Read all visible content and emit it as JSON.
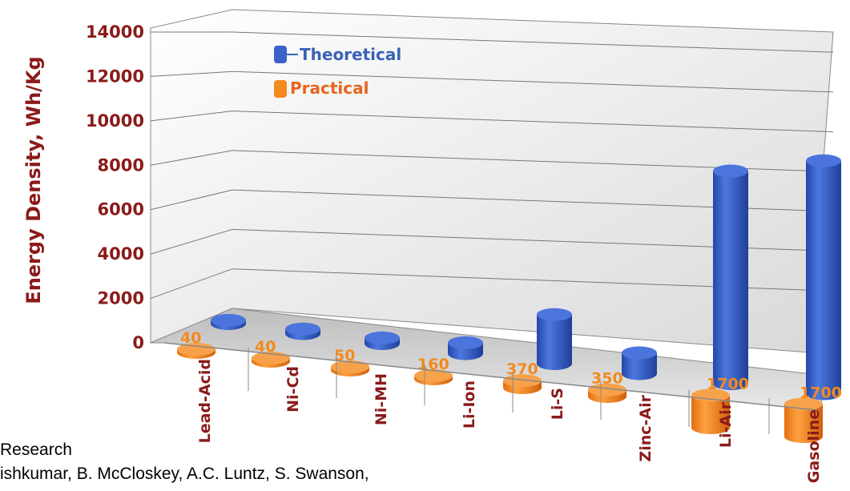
{
  "chart_data": {
    "type": "bar",
    "ylabel": "Energy Density, Wh/Kg",
    "ylim": [
      0,
      14000
    ],
    "yticks": [
      "0",
      "2000",
      "4000",
      "6000",
      "8000",
      "10000",
      "12000",
      "14000"
    ],
    "categories": [
      "Lead-Acid",
      "Ni-Cd",
      "Ni-MH",
      "Li-Ion",
      "Li-S",
      "Zinc-Air",
      "Li-Air",
      "Gasoline"
    ],
    "series": [
      {
        "name": "Theoretical",
        "color": "#3a62c8",
        "values": [
          170,
          240,
          300,
          570,
          2570,
          1090,
          11140,
          12200
        ]
      },
      {
        "name": "Practical",
        "color": "#f28a1e",
        "values": [
          40,
          40,
          50,
          160,
          370,
          350,
          1700,
          1700
        ]
      }
    ],
    "data_labels": [
      "40",
      "40",
      "50",
      "160",
      "370",
      "350",
      "1700",
      "1700"
    ],
    "legend_position": "top-left",
    "grid": true
  },
  "caption": {
    "line1": "Research",
    "line2": "ishkumar, B. McCloskey, A.C. Luntz, S. Swanson,"
  }
}
